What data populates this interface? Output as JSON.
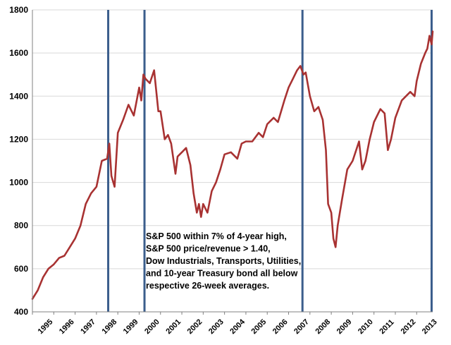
{
  "chart_data": {
    "type": "line",
    "title": "",
    "xlabel": "",
    "ylabel": "",
    "xlim": [
      1995.0,
      2013.75
    ],
    "ylim": [
      400,
      1800
    ],
    "grid": "horizontal",
    "legend": "none",
    "y_ticks": [
      400,
      600,
      800,
      1000,
      1200,
      1400,
      1600,
      1800
    ],
    "y_tick_labels": [
      "400",
      "600",
      "800",
      "1000",
      "1200",
      "1400",
      "1600",
      "1800"
    ],
    "x_ticks": [
      1995,
      1996,
      1997,
      1998,
      1999,
      2000,
      2001,
      2002,
      2003,
      2004,
      2005,
      2006,
      2007,
      2008,
      2009,
      2010,
      2011,
      2012,
      2013
    ],
    "x_tick_labels": [
      "1995",
      "1996",
      "1997",
      "1998",
      "1999",
      "2000",
      "2001",
      "2002",
      "2003",
      "2004",
      "2005",
      "2006",
      "2007",
      "2008",
      "2009",
      "2010",
      "2011",
      "2012",
      "2013"
    ],
    "series": [
      {
        "color": "#a83232",
        "x": [
          1995.0,
          1995.25,
          1995.5,
          1995.75,
          1996.0,
          1996.25,
          1996.5,
          1996.75,
          1997.0,
          1997.25,
          1997.5,
          1997.75,
          1998.0,
          1998.25,
          1998.5,
          1998.6,
          1998.7,
          1998.85,
          1999.0,
          1999.25,
          1999.5,
          1999.75,
          2000.0,
          2000.1,
          2000.2,
          2000.3,
          2000.5,
          2000.7,
          2000.9,
          2001.0,
          2001.2,
          2001.35,
          2001.5,
          2001.7,
          2001.8,
          2002.0,
          2002.2,
          2002.4,
          2002.55,
          2002.7,
          2002.8,
          2002.9,
          2003.0,
          2003.2,
          2003.4,
          2003.6,
          2003.8,
          2004.0,
          2004.3,
          2004.6,
          2004.8,
          2005.0,
          2005.3,
          2005.6,
          2005.8,
          2006.0,
          2006.3,
          2006.5,
          2006.8,
          2007.0,
          2007.2,
          2007.4,
          2007.55,
          2007.7,
          2007.8,
          2008.0,
          2008.2,
          2008.4,
          2008.6,
          2008.75,
          2008.85,
          2009.0,
          2009.1,
          2009.2,
          2009.3,
          2009.5,
          2009.75,
          2010.0,
          2010.3,
          2010.45,
          2010.6,
          2010.8,
          2011.0,
          2011.3,
          2011.5,
          2011.65,
          2011.8,
          2012.0,
          2012.3,
          2012.5,
          2012.7,
          2012.9,
          2013.0,
          2013.2,
          2013.4,
          2013.5,
          2013.6,
          2013.7,
          2013.75
        ],
        "y": [
          460,
          500,
          560,
          600,
          620,
          650,
          660,
          700,
          740,
          800,
          900,
          950,
          980,
          1100,
          1110,
          1180,
          1030,
          980,
          1230,
          1290,
          1360,
          1310,
          1440,
          1380,
          1500,
          1480,
          1460,
          1520,
          1330,
          1330,
          1200,
          1220,
          1180,
          1040,
          1120,
          1140,
          1160,
          1080,
          950,
          860,
          900,
          840,
          900,
          860,
          960,
          1000,
          1060,
          1130,
          1140,
          1110,
          1180,
          1190,
          1190,
          1230,
          1210,
          1270,
          1300,
          1280,
          1380,
          1440,
          1480,
          1520,
          1540,
          1500,
          1510,
          1400,
          1330,
          1350,
          1290,
          1150,
          900,
          860,
          740,
          700,
          800,
          920,
          1060,
          1100,
          1190,
          1060,
          1100,
          1200,
          1280,
          1340,
          1320,
          1150,
          1200,
          1300,
          1380,
          1400,
          1420,
          1400,
          1470,
          1550,
          1600,
          1620,
          1680,
          1640,
          1700
        ]
      }
    ],
    "vertical_markers": [
      1998.55,
      2000.25,
      2007.65,
      2013.7
    ],
    "annotation": [
      "S&P 500 within 7% of 4-year high,",
      "S&P 500 price/revenue > 1.40,",
      "Dow Industrials, Transports, Utilities,",
      "and 10-year Treasury bond all below",
      "respective 26-week averages."
    ]
  }
}
